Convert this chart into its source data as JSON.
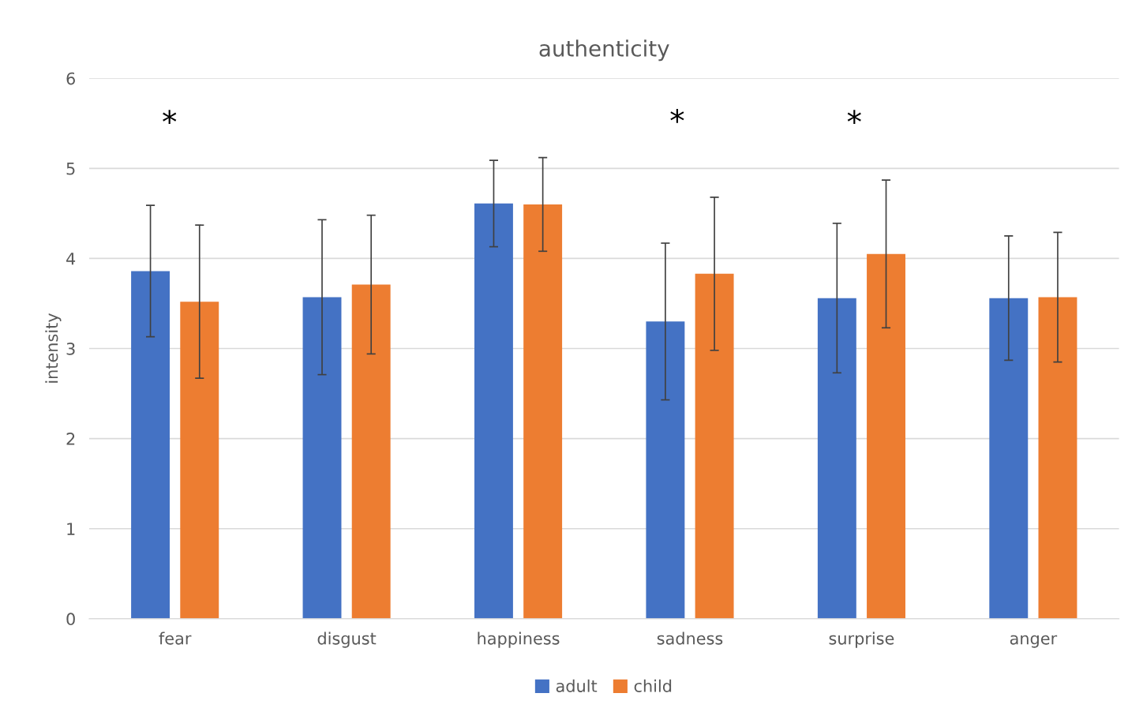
{
  "chart_data": {
    "type": "bar",
    "title": "authenticity",
    "ylabel": "intensity",
    "categories": [
      "fear",
      "disgust",
      "happiness",
      "sadness",
      "surprise",
      "anger"
    ],
    "series": [
      {
        "name": "adult",
        "color": "#4472c4",
        "values": [
          3.86,
          3.57,
          4.61,
          3.3,
          3.56,
          3.56
        ],
        "errors": [
          0.73,
          0.86,
          0.48,
          0.87,
          0.83,
          0.69
        ]
      },
      {
        "name": "child",
        "color": "#ed7d31",
        "values": [
          3.52,
          3.71,
          4.6,
          3.83,
          4.05,
          3.57
        ],
        "errors": [
          0.85,
          0.77,
          0.52,
          0.85,
          0.82,
          0.72
        ]
      }
    ],
    "ylim": [
      0,
      6
    ],
    "yticks": [
      0,
      1,
      2,
      3,
      4,
      5,
      6
    ],
    "grid": "y",
    "legend": "bottom",
    "annotations": [
      "*",
      "*",
      "*"
    ]
  }
}
